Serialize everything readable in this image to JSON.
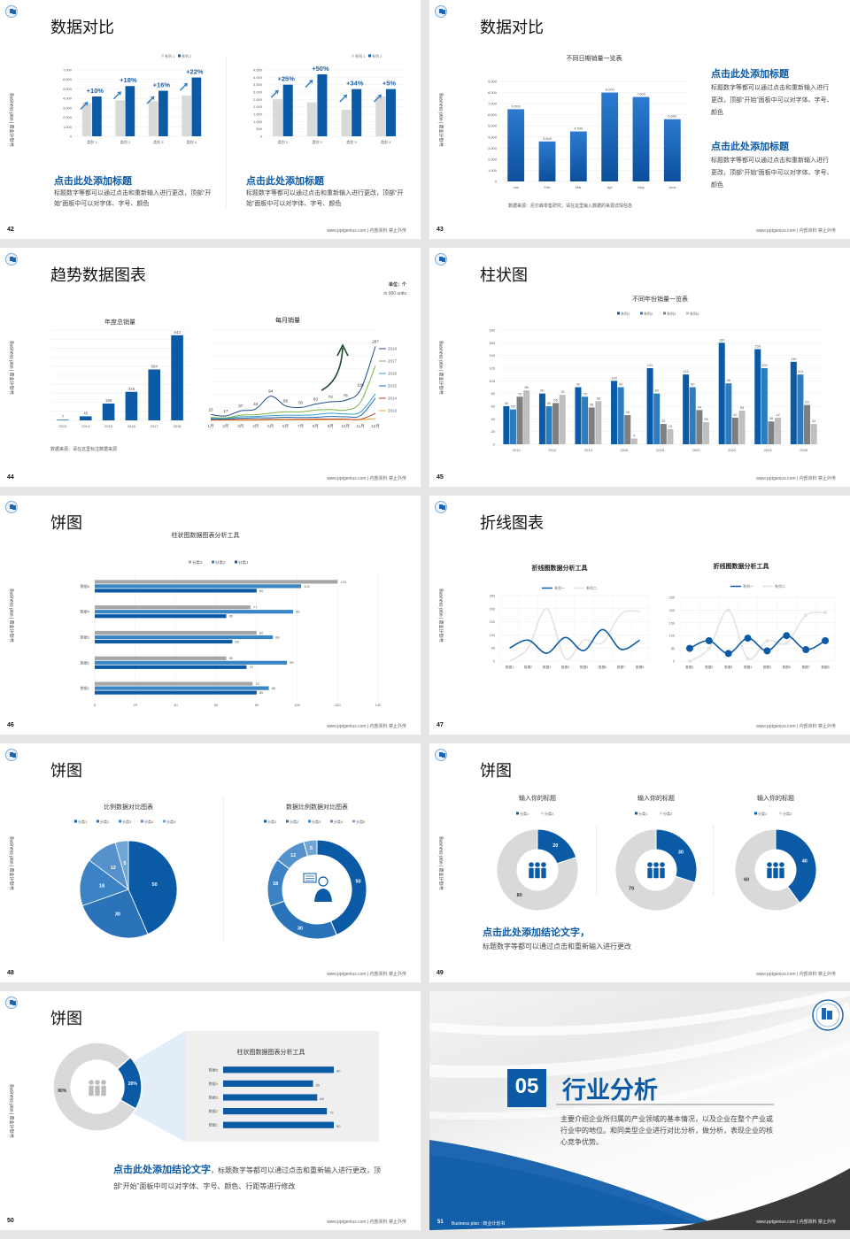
{
  "common": {
    "side_label": "Business plan | 商业计划书",
    "footer": "www.pptgenius.com | 内部资料 禁止外传"
  },
  "slides": [
    {
      "page": "42",
      "title": "数据对比",
      "blocks": [
        {
          "heading": "点击此处添加标题",
          "body": "标题数字等都可以通过点击和重新输入进行更改，顶部“开始”面板中可以对字体、字号、颜色"
        },
        {
          "heading": "点击此处添加标题",
          "body": "标题数字等都可以通过点击和重新输入进行更改，顶部“开始”面板中可以对字体、字号、颜色"
        }
      ]
    },
    {
      "page": "43",
      "title": "数据对比",
      "source": "数据来源：尼尔森零售研究，请在这里输入数据的来源详情信息",
      "blocks": [
        {
          "heading": "点击此处添加标题",
          "body": "标题数字等都可以通过点击和重新输入进行更改，顶部“开始”面板中可以对字体、字号、颜色"
        },
        {
          "heading": "点击此处添加标题",
          "body": "标题数字等都可以通过点击和重新输入进行更改，顶部“开始”面板中可以对字体、字号、颜色"
        }
      ]
    },
    {
      "page": "44",
      "title": "趋势数据图表",
      "unit": "单位：个",
      "unit_en": "in 000 units",
      "source": "数据来源：请在这里标注数据来源"
    },
    {
      "page": "45",
      "title": "柱状图"
    },
    {
      "page": "46",
      "title": "饼图"
    },
    {
      "page": "47",
      "title": "折线图表"
    },
    {
      "page": "48",
      "title": "饼图"
    },
    {
      "page": "49",
      "title": "饼图",
      "conclusion": "点击此处添加结论文字，",
      "body": "标题数字等都可以通过点击和重新输入进行更改"
    },
    {
      "page": "50",
      "title": "饼图",
      "conclusion": "点击此处添加结论文字",
      "body": "，标题数字等都可以通过点击和重新输入进行更改，顶部“开始”面板中可以对字体、字号、颜色、行距等进行修改"
    },
    {
      "page": "51",
      "section_number": "05",
      "title": "行业分析",
      "body": "主要介绍企业所归属的产业领域的基本情况，以及企业在整个产业或行业中的地位。和同类型企业进行对比分析，做分析，表现企业的核心竞争优势。",
      "footer_left": "Business plan : 商业计划书"
    }
  ],
  "colors": {
    "primary": "#0b5aa5",
    "secondary": "#2e7cc0",
    "gray": "#d9d9d9",
    "dark_gray": "#7f7f7f",
    "light_gray": "#bfbfbf"
  },
  "chart_data": [
    {
      "type": "bar",
      "title": "",
      "categories": [
        "类别 1",
        "类别 2",
        "类别 3",
        "类别 4"
      ],
      "series": [
        {
          "name": "系列 1",
          "values": [
            3500,
            3800,
            3700,
            4300
          ],
          "color": "#d9d9d9"
        },
        {
          "name": "系列 2",
          "values": [
            4200,
            5300,
            4800,
            6200
          ],
          "color": "#0b5aa5"
        }
      ],
      "annotations": [
        "+10%",
        "+18%",
        "+16%",
        "+22%"
      ],
      "ylim": [
        0,
        7000
      ],
      "ystep": 1000,
      "grid": true,
      "legend": "top-right"
    },
    {
      "type": "bar",
      "title": "",
      "categories": [
        "类别 1",
        "类别 2",
        "类别 3",
        "类别 4"
      ],
      "series": [
        {
          "name": "系列 1",
          "values": [
            2500,
            2300,
            1800,
            2700
          ],
          "color": "#d9d9d9"
        },
        {
          "name": "系列 2",
          "values": [
            3500,
            4200,
            3200,
            3200
          ],
          "color": "#0b5aa5"
        }
      ],
      "annotations": [
        "+25%",
        "+50%",
        "+34%",
        "+5%"
      ],
      "ylim": [
        0,
        4500
      ],
      "ystep": 500,
      "grid": true,
      "legend": "top-right"
    },
    {
      "type": "bar",
      "title": "不同日期销量一览表",
      "categories": [
        "Jan",
        "Feb",
        "Mar",
        "Apr",
        "May",
        "June"
      ],
      "series": [
        {
          "values": [
            6500,
            3600,
            4500,
            8000,
            7600,
            5600
          ],
          "color": "#1a66b5"
        }
      ],
      "data_labels": true,
      "ylim": [
        0,
        9000
      ],
      "ystep": 1000,
      "grid": true
    },
    {
      "type": "bar",
      "title": "年度总销量",
      "categories": [
        "2013",
        "2014",
        "2015",
        "2016",
        "2017",
        "2018"
      ],
      "series": [
        {
          "values": [
            7,
            45,
            186,
            316,
            564,
            943
          ],
          "color": "#0b5aa5"
        }
      ],
      "data_labels": true,
      "ylim": [
        0,
        1000
      ],
      "ystep": 100,
      "grid": true
    },
    {
      "type": "line",
      "title": "每月销量",
      "categories": [
        "1月",
        "2月",
        "3月",
        "4月",
        "5月",
        "6月",
        "7月",
        "8月",
        "9月",
        "10月",
        "11月",
        "12月"
      ],
      "series": [
        {
          "name": "2018",
          "values": [
            23,
            17,
            37,
            44,
            94,
            56,
            50,
            63,
            72,
            78,
            118,
            287
          ],
          "color": "#1f4e8c",
          "labels": true
        },
        {
          "name": "2017",
          "values": [
            12,
            10,
            20,
            22,
            28,
            33,
            33,
            40,
            42,
            40,
            70,
            213
          ],
          "color": "#7cb342"
        },
        {
          "name": "2016",
          "values": [
            8,
            7,
            14,
            15,
            18,
            20,
            20,
            22,
            28,
            25,
            32,
            103
          ],
          "color": "#33a1c9"
        },
        {
          "name": "2015",
          "values": [
            5,
            5,
            8,
            10,
            10,
            12,
            11,
            12,
            15,
            14,
            18,
            86
          ],
          "color": "#1f66b0"
        },
        {
          "name": "2014",
          "values": [
            2,
            2,
            3,
            3,
            4,
            4,
            4,
            5,
            5,
            5,
            4,
            27
          ],
          "color": "#b5462a"
        },
        {
          "name": "2013",
          "values": [
            1,
            1,
            1,
            1,
            2,
            2,
            2,
            2,
            3,
            3,
            3,
            7
          ],
          "color": "#f0a030"
        }
      ],
      "ylim": [
        0,
        350
      ],
      "ystep": 50,
      "grid": true,
      "smooth": true,
      "legend": "right"
    },
    {
      "type": "bar",
      "title": "不同年份销量一览表",
      "categories": [
        "2010",
        "2012",
        "2014",
        "2016",
        "2018",
        "2020",
        "2022",
        "2024",
        "2026"
      ],
      "series": [
        {
          "name": "系列1",
          "values": [
            60,
            80,
            90,
            100,
            120,
            110,
            160,
            150,
            130
          ],
          "color": "#0b5aa5"
        },
        {
          "name": "系列2",
          "values": [
            55,
            60,
            75,
            90,
            80,
            90,
            96,
            120,
            110
          ],
          "color": "#2e7cc0"
        },
        {
          "name": "系列3",
          "values": [
            75,
            65,
            58,
            46,
            32,
            54,
            42,
            36,
            62
          ],
          "color": "#7f7f7f"
        },
        {
          "name": "系列4",
          "values": [
            85,
            78,
            68,
            9,
            24,
            35,
            53,
            42,
            32
          ],
          "color": "#bfbfbf"
        }
      ],
      "data_labels": true,
      "ylim": [
        0,
        180
      ],
      "ystep": 20,
      "grid": true,
      "legend": "top"
    },
    {
      "type": "bar",
      "orientation": "horizontal",
      "title": "柱状图数据图表分析工具",
      "categories": [
        "数据1",
        "数据2",
        "数据3",
        "数据4",
        "数据5"
      ],
      "series": [
        {
          "name": "分类3",
          "values": [
            78,
            65,
            80,
            77,
            120
          ],
          "color": "#a6a6a6"
        },
        {
          "name": "分类2",
          "values": [
            86,
            95,
            88,
            98,
            102
          ],
          "color": "#3a85c6"
        },
        {
          "name": "分类1",
          "values": [
            80,
            75,
            68,
            65,
            80
          ],
          "color": "#0b5aa5"
        }
      ],
      "data_labels": true,
      "xlim": [
        0,
        140
      ],
      "xstep": 20,
      "grid": true,
      "legend": "top"
    },
    {
      "type": "line",
      "title": "折线图数据分析工具",
      "categories": [
        "数据1",
        "数据2",
        "数据3",
        "数据4",
        "数据5",
        "数据6",
        "数据7",
        "数据8"
      ],
      "series": [
        {
          "name": "系列一",
          "values": [
            50,
            80,
            30,
            90,
            40,
            120,
            45,
            80
          ],
          "color": "#0b5aa5"
        },
        {
          "name": "系列二",
          "values": [
            0,
            50,
            200,
            10,
            80,
            70,
            180,
            190
          ],
          "color": "#e3e3e3"
        }
      ],
      "ylim": [
        0,
        250
      ],
      "ystep": 50,
      "grid": true,
      "smooth": true,
      "legend": "top"
    },
    {
      "type": "line",
      "title": "折线图数据分析工具",
      "categories": [
        "数据1",
        "数据2",
        "数据3",
        "数据4",
        "数据5",
        "数据6",
        "数据7",
        "数据8"
      ],
      "series": [
        {
          "name": "系列一",
          "values": [
            50,
            80,
            30,
            90,
            40,
            100,
            45,
            80
          ],
          "color": "#0b5aa5"
        },
        {
          "name": "系列二",
          "values": [
            0,
            50,
            200,
            10,
            80,
            70,
            180,
            190
          ],
          "color": "#e3e3e3"
        }
      ],
      "ylim": [
        0,
        250
      ],
      "ystep": 50,
      "grid": true,
      "smooth": true,
      "markers": true,
      "legend": "top"
    },
    {
      "type": "pie",
      "title": "比例数据对比图表",
      "labels": [
        "分类1",
        "分类2",
        "分类3",
        "分类4",
        "分类5"
      ],
      "values": [
        50,
        30,
        18,
        12,
        5
      ],
      "colors": [
        "#0b5aa5",
        "#2a73b8",
        "#3b83c4",
        "#5592cc",
        "#6fa6d6"
      ],
      "legend": "top"
    },
    {
      "type": "pie",
      "donut": true,
      "title": "数据比例数据对比图表",
      "labels": [
        "分类1",
        "分类2",
        "分类3",
        "分类4",
        "分类5"
      ],
      "values": [
        50,
        30,
        18,
        12,
        5
      ],
      "colors": [
        "#0b5aa5",
        "#2a73b8",
        "#3b83c4",
        "#5592cc",
        "#6fa6d6"
      ],
      "legend": "top"
    },
    {
      "type": "pie",
      "donut": true,
      "title": "输入你的标题",
      "labels": [
        "分类1",
        "分类2"
      ],
      "values": [
        20,
        80
      ],
      "colors": [
        "#0b5aa5",
        "#d9d9d9"
      ],
      "legend": "top"
    },
    {
      "type": "pie",
      "donut": true,
      "title": "输入你的标题",
      "labels": [
        "分类1",
        "分类2"
      ],
      "values": [
        30,
        70
      ],
      "colors": [
        "#0b5aa5",
        "#d9d9d9"
      ],
      "legend": "top"
    },
    {
      "type": "pie",
      "donut": true,
      "title": "输入你的标题",
      "labels": [
        "分类1",
        "分类2"
      ],
      "values": [
        40,
        60
      ],
      "colors": [
        "#0b5aa5",
        "#d9d9d9"
      ],
      "legend": "top"
    },
    {
      "type": "pie",
      "donut": true,
      "title": "",
      "labels": [
        "20%",
        "80%"
      ],
      "values": [
        20,
        80
      ],
      "colors": [
        "#0b5aa5",
        "#d9d9d9"
      ]
    },
    {
      "type": "bar",
      "orientation": "horizontal",
      "title": "柱状图数据图表分析工具",
      "categories": [
        "数据1",
        "数据2",
        "数据3",
        "数据4",
        "数据5"
      ],
      "series": [
        {
          "values": [
            80,
            75,
            68,
            65,
            80
          ],
          "color": "#0b5aa5"
        }
      ],
      "data_labels": true
    }
  ]
}
